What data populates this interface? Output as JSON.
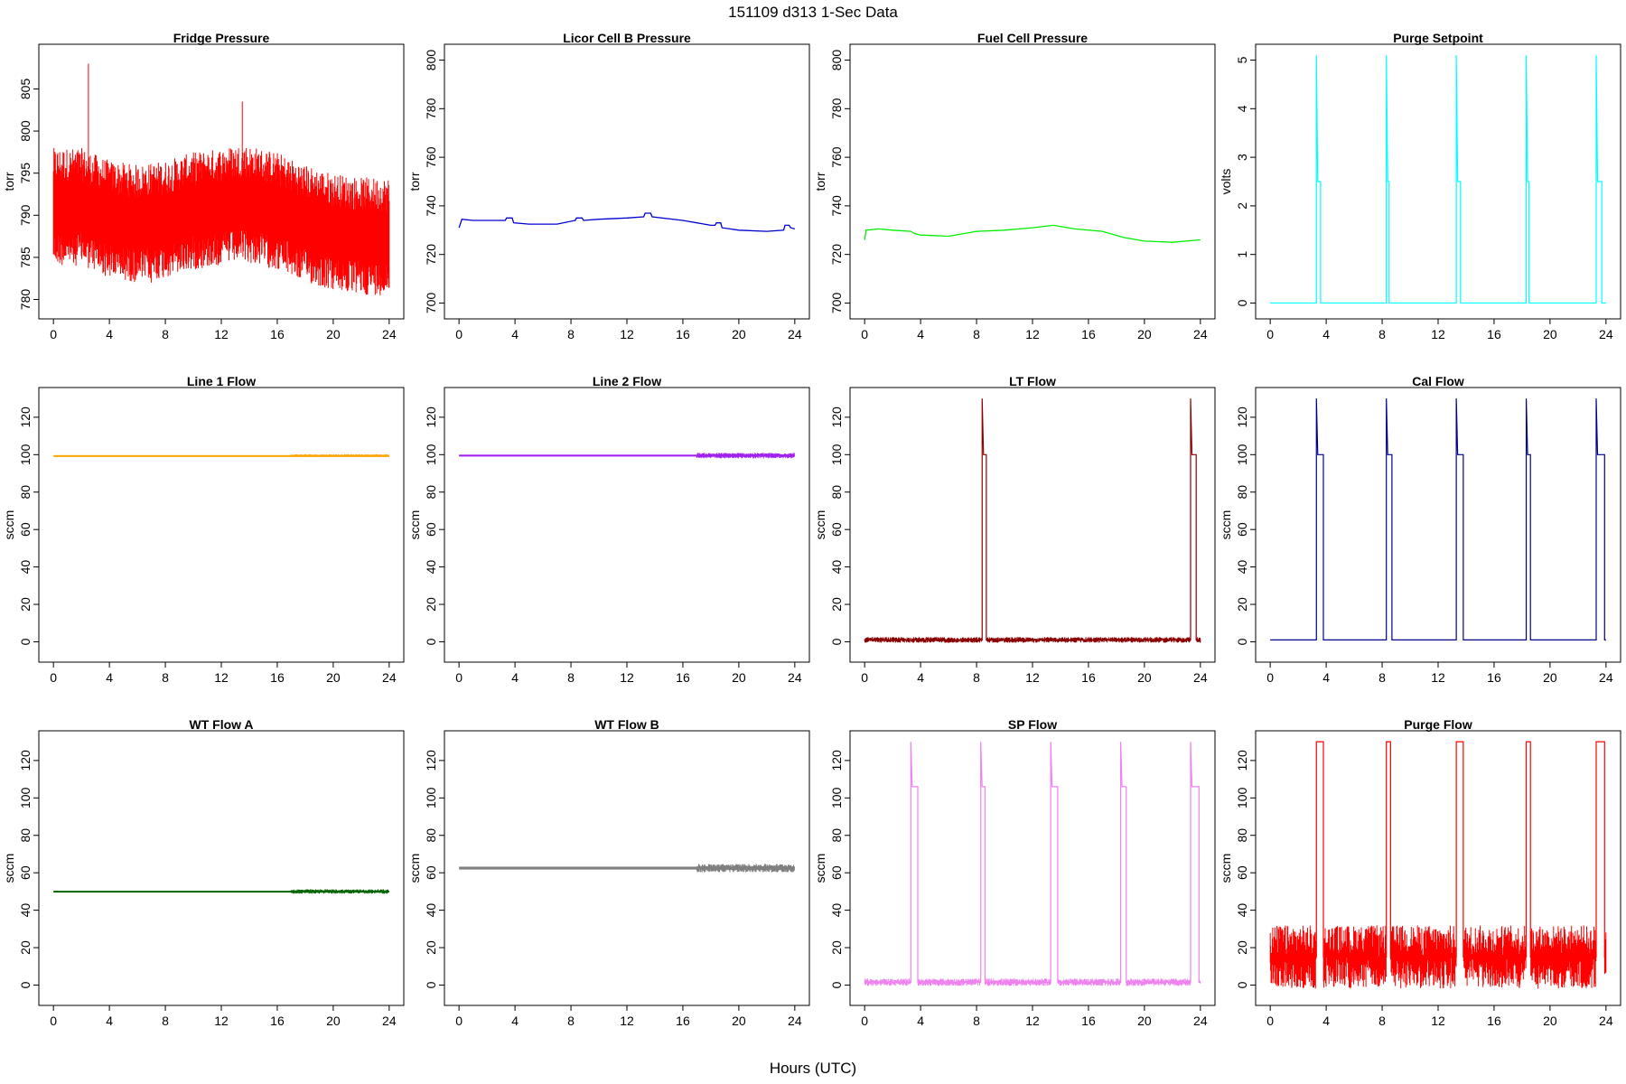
{
  "figure": {
    "title": "151109   d313   1-Sec Data",
    "xlabel": "Hours (UTC)"
  },
  "chart_data": [
    {
      "type": "line",
      "title": "Fridge Pressure",
      "ylabel": "torr",
      "color": "#ff0000",
      "xlim": [
        0,
        24
      ],
      "ylim": [
        779,
        809
      ],
      "xticks": [
        0,
        4,
        8,
        12,
        16,
        20,
        24
      ],
      "yticks": [
        780,
        785,
        790,
        795,
        800,
        805
      ],
      "style": "band",
      "x": [
        0,
        2,
        4,
        6,
        8,
        10,
        12,
        13.5,
        16,
        18,
        20,
        22,
        24
      ],
      "y": [
        791,
        791,
        789.5,
        789,
        789.5,
        790.5,
        791,
        791.5,
        790.5,
        789,
        788,
        787.5,
        787.5
      ],
      "spread": 5,
      "spikes": [
        {
          "x": 2.5,
          "y": 808
        },
        {
          "x": 13.5,
          "y": 803.5
        },
        {
          "x": 7,
          "y": 782
        },
        {
          "x": 21,
          "y": 781
        }
      ]
    },
    {
      "type": "line",
      "title": "Licor Cell B Pressure",
      "ylabel": "torr",
      "color": "#0000cd",
      "xlim": [
        0,
        24
      ],
      "ylim": [
        698,
        802
      ],
      "xticks": [
        0,
        4,
        8,
        12,
        16,
        20,
        24
      ],
      "yticks": [
        700,
        720,
        740,
        760,
        780,
        800
      ],
      "style": "line",
      "x": [
        0,
        0.2,
        1,
        3.3,
        3.4,
        3.8,
        3.9,
        5,
        7,
        8.3,
        8.4,
        8.8,
        8.9,
        10,
        12,
        13.2,
        13.3,
        13.7,
        13.8,
        16,
        18,
        18.3,
        18.4,
        18.7,
        18.8,
        20,
        22,
        23.2,
        23.3,
        23.6,
        23.7,
        24
      ],
      "y": [
        731,
        734.5,
        734,
        734,
        735,
        735,
        733,
        732.5,
        732.5,
        734,
        735,
        735,
        734,
        734.5,
        735,
        735.5,
        737,
        737,
        735.5,
        734,
        732,
        732,
        733,
        733,
        731,
        730,
        729.5,
        730,
        732,
        732,
        731,
        730.5
      ]
    },
    {
      "type": "line",
      "title": "Fuel Cell Pressure",
      "ylabel": "torr",
      "color": "#00ee00",
      "xlim": [
        0,
        24
      ],
      "ylim": [
        698,
        802
      ],
      "xticks": [
        0,
        4,
        8,
        12,
        16,
        20,
        24
      ],
      "yticks": [
        700,
        720,
        740,
        760,
        780,
        800
      ],
      "style": "line",
      "x": [
        0,
        0.1,
        1,
        2,
        3.3,
        3.6,
        4,
        6,
        8,
        10,
        12,
        13.5,
        15,
        17,
        18.5,
        20,
        22,
        24
      ],
      "y": [
        726,
        730,
        730.5,
        730,
        729.5,
        728.5,
        728,
        727.5,
        729.5,
        730,
        731,
        732,
        730.5,
        729.5,
        727,
        725.5,
        725,
        726
      ]
    },
    {
      "type": "line",
      "title": "Purge Setpoint",
      "ylabel": "volts",
      "color": "#00ffff",
      "xlim": [
        0,
        24
      ],
      "ylim": [
        -0.1,
        5.1
      ],
      "xticks": [
        0,
        4,
        8,
        12,
        16,
        20,
        24
      ],
      "yticks": [
        0,
        1,
        2,
        3,
        4,
        5
      ],
      "style": "pulses",
      "baseline": 0,
      "pulse_value": 2.5,
      "pulses": [
        [
          3.3,
          3.6
        ],
        [
          8.3,
          8.5
        ],
        [
          13.3,
          13.6
        ],
        [
          18.3,
          18.5
        ],
        [
          23.3,
          23.7
        ]
      ]
    },
    {
      "type": "line",
      "title": "Line 1 Flow",
      "ylabel": "sccm",
      "color": "#ffa500",
      "xlim": [
        0,
        24
      ],
      "ylim": [
        -5,
        130
      ],
      "xticks": [
        0,
        4,
        8,
        12,
        16,
        20,
        24
      ],
      "yticks": [
        0,
        20,
        40,
        60,
        80,
        100,
        120
      ],
      "style": "flat",
      "value": 99.5,
      "spread": 0.5
    },
    {
      "type": "line",
      "title": "Line 2 Flow",
      "ylabel": "sccm",
      "color": "#a020f0",
      "xlim": [
        0,
        24
      ],
      "ylim": [
        -5,
        130
      ],
      "xticks": [
        0,
        4,
        8,
        12,
        16,
        20,
        24
      ],
      "yticks": [
        0,
        20,
        40,
        60,
        80,
        100,
        120
      ],
      "style": "flat",
      "value": 99.5,
      "spread": 1
    },
    {
      "type": "line",
      "title": "LT Flow",
      "ylabel": "sccm",
      "color": "#8b0000",
      "xlim": [
        0,
        24
      ],
      "ylim": [
        -5,
        130
      ],
      "xticks": [
        0,
        4,
        8,
        12,
        16,
        20,
        24
      ],
      "yticks": [
        0,
        20,
        40,
        60,
        80,
        100,
        120
      ],
      "style": "pulses",
      "baseline": 1,
      "pulse_value": 100,
      "spread": 1.5,
      "pulses": [
        [
          8.4,
          8.7
        ],
        [
          23.3,
          23.7
        ]
      ]
    },
    {
      "type": "line",
      "title": "Cal Flow",
      "ylabel": "sccm",
      "color": "#00008b",
      "xlim": [
        0,
        24
      ],
      "ylim": [
        -5,
        130
      ],
      "xticks": [
        0,
        4,
        8,
        12,
        16,
        20,
        24
      ],
      "yticks": [
        0,
        20,
        40,
        60,
        80,
        100,
        120
      ],
      "style": "pulses",
      "baseline": 1,
      "pulse_value": 100,
      "pulses": [
        [
          3.3,
          3.8
        ],
        [
          8.3,
          8.7
        ],
        [
          13.3,
          13.8
        ],
        [
          18.3,
          18.6
        ],
        [
          23.3,
          23.9
        ]
      ]
    },
    {
      "type": "line",
      "title": "WT Flow A",
      "ylabel": "sccm",
      "color": "#006400",
      "xlim": [
        0,
        24
      ],
      "ylim": [
        -5,
        130
      ],
      "xticks": [
        0,
        4,
        8,
        12,
        16,
        20,
        24
      ],
      "yticks": [
        0,
        20,
        40,
        60,
        80,
        100,
        120
      ],
      "style": "flat",
      "value": 50,
      "spread": 0.8
    },
    {
      "type": "line",
      "title": "WT Flow B",
      "ylabel": "sccm",
      "color": "#7f7f7f",
      "xlim": [
        0,
        24
      ],
      "ylim": [
        -5,
        130
      ],
      "xticks": [
        0,
        4,
        8,
        12,
        16,
        20,
        24
      ],
      "yticks": [
        0,
        20,
        40,
        60,
        80,
        100,
        120
      ],
      "style": "flat",
      "value": 62.5,
      "spread": 1.5
    },
    {
      "type": "line",
      "title": "SP Flow",
      "ylabel": "sccm",
      "color": "#ee82ee",
      "xlim": [
        0,
        24
      ],
      "ylim": [
        -5,
        130
      ],
      "xticks": [
        0,
        4,
        8,
        12,
        16,
        20,
        24
      ],
      "yticks": [
        0,
        20,
        40,
        60,
        80,
        100,
        120
      ],
      "style": "pulses",
      "baseline": 1.5,
      "pulse_value": 106,
      "spread": 2,
      "pulses": [
        [
          3.3,
          3.8
        ],
        [
          8.3,
          8.6
        ],
        [
          13.3,
          13.8
        ],
        [
          18.3,
          18.7
        ],
        [
          23.3,
          23.9
        ]
      ]
    },
    {
      "type": "line",
      "title": "Purge Flow",
      "ylabel": "sccm",
      "color": "#ff0000",
      "xlim": [
        0,
        24
      ],
      "ylim": [
        -5,
        130
      ],
      "xticks": [
        0,
        4,
        8,
        12,
        16,
        20,
        24
      ],
      "yticks": [
        0,
        20,
        40,
        60,
        80,
        100,
        120
      ],
      "style": "pulses",
      "baseline": 15,
      "pulse_value": 130,
      "spread": 17,
      "pulses": [
        [
          3.3,
          3.8
        ],
        [
          8.3,
          8.6
        ],
        [
          13.3,
          13.8
        ],
        [
          18.3,
          18.6
        ],
        [
          23.3,
          23.9
        ]
      ]
    }
  ]
}
